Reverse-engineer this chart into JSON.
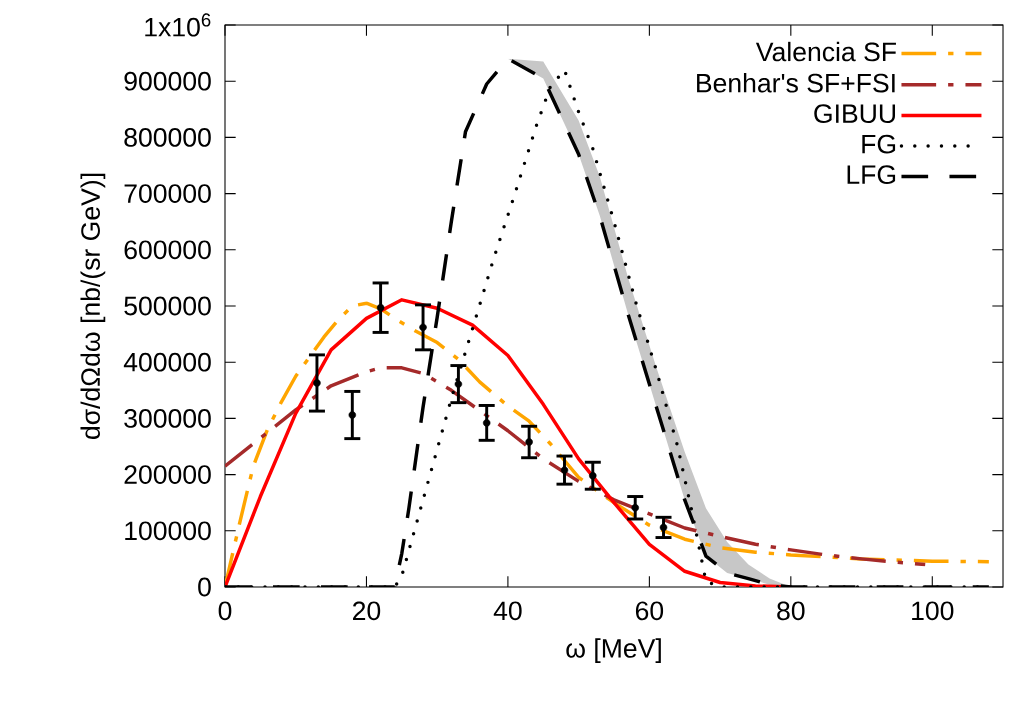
{
  "chart_data": {
    "type": "line",
    "xlabel": "ω [MeV]",
    "ylabel": "dσ/dΩdω [nb/(sr GeV)]",
    "xlim": [
      0,
      110
    ],
    "ylim": [
      0,
      1000000
    ],
    "xticks": [
      0,
      20,
      40,
      60,
      80,
      100
    ],
    "yticks": [
      0,
      100000,
      200000,
      300000,
      400000,
      500000,
      600000,
      700000,
      800000,
      900000,
      {
        "value": 1000000,
        "label": "1x10$^{6}$"
      }
    ],
    "legend": "top right",
    "grid": false,
    "series": [
      {
        "name": "Valencia SF",
        "color": "#ffa500",
        "line_style": "dashdot",
        "x": [
          0,
          2,
          4,
          6,
          8,
          10,
          12,
          14,
          16,
          18,
          20,
          22,
          24,
          27,
          30,
          33,
          36,
          40,
          43,
          46,
          50,
          55,
          60,
          65,
          70,
          75,
          80,
          90,
          100,
          108
        ],
        "values": [
          0,
          110000,
          215000,
          280000,
          330000,
          375000,
          410000,
          445000,
          475000,
          500000,
          505000,
          495000,
          478000,
          455000,
          435000,
          405000,
          365000,
          322000,
          295000,
          255000,
          195000,
          150000,
          110000,
          85000,
          70000,
          62000,
          57000,
          50000,
          46000,
          45000
        ]
      },
      {
        "name": "Benhar's SF+FSI",
        "color": "#a52a2a",
        "line_style": "dashdot",
        "x": [
          0,
          5,
          10,
          15,
          20,
          22,
          25,
          28,
          32,
          35,
          40,
          45,
          50,
          55,
          60,
          65,
          70,
          75,
          80,
          85,
          90,
          95,
          99
        ],
        "values": [
          215000,
          265000,
          315000,
          358000,
          383000,
          390000,
          390000,
          380000,
          350000,
          323000,
          278000,
          228000,
          188000,
          155000,
          130000,
          105000,
          90000,
          76000,
          66000,
          57000,
          50000,
          44000,
          40000
        ]
      },
      {
        "name": "GIBUU",
        "color": "#ff0000",
        "line_style": "solid",
        "x": [
          0,
          5,
          10,
          15,
          20,
          25,
          30,
          35,
          40,
          45,
          50,
          55,
          60,
          65,
          70,
          75,
          80
        ],
        "values": [
          0,
          161000,
          309000,
          422000,
          478000,
          511000,
          496000,
          466000,
          412000,
          325000,
          228000,
          150000,
          76000,
          28000,
          8000,
          2000,
          0
        ]
      },
      {
        "name": "FG",
        "color": "#000000",
        "line_style": "dotted",
        "x": [
          0,
          24,
          25,
          27,
          30,
          32,
          35,
          38,
          41,
          44,
          46,
          48,
          50,
          52,
          55,
          58,
          61,
          64,
          66,
          68,
          70,
          108
        ],
        "values": [
          0,
          0,
          20000,
          110000,
          245000,
          335000,
          460000,
          585000,
          700000,
          820000,
          890000,
          920000,
          845000,
          780000,
          650000,
          510000,
          385000,
          250000,
          135000,
          10000,
          0,
          0
        ]
      },
      {
        "name": "LFG",
        "color": "#000000",
        "line_style": "dashed",
        "x": [
          0,
          24,
          25,
          26,
          27,
          28,
          30,
          32,
          34,
          37,
          40,
          45,
          50,
          53,
          57,
          61,
          65,
          68,
          71,
          74,
          77,
          80,
          108
        ],
        "values": [
          0,
          0,
          60000,
          140000,
          230000,
          320000,
          480000,
          650000,
          810000,
          895000,
          940000,
          905000,
          770000,
          660000,
          485000,
          320000,
          155000,
          55000,
          25000,
          15000,
          4000,
          0,
          0
        ],
        "lower": [
          null,
          null,
          null,
          null,
          null,
          null,
          null,
          null,
          null,
          null,
          940000,
          905000,
          770000,
          660000,
          485000,
          320000,
          155000,
          55000,
          25000,
          15000,
          4000,
          0,
          null
        ],
        "upper": [
          null,
          null,
          null,
          null,
          null,
          null,
          null,
          null,
          null,
          null,
          940000,
          935000,
          830000,
          730000,
          550000,
          390000,
          240000,
          140000,
          80000,
          40000,
          15000,
          0,
          null
        ]
      },
      {
        "type": "scatter",
        "color": "#000000",
        "x": [
          13,
          18,
          22,
          28,
          33,
          37,
          43,
          48,
          52,
          58,
          62
        ],
        "values": [
          363000,
          306000,
          497000,
          462000,
          361000,
          292000,
          258000,
          208000,
          198000,
          141000,
          106000
        ],
        "errors": [
          50000,
          42000,
          44000,
          40000,
          33000,
          31000,
          28000,
          25000,
          24000,
          20000,
          18000
        ]
      }
    ]
  }
}
